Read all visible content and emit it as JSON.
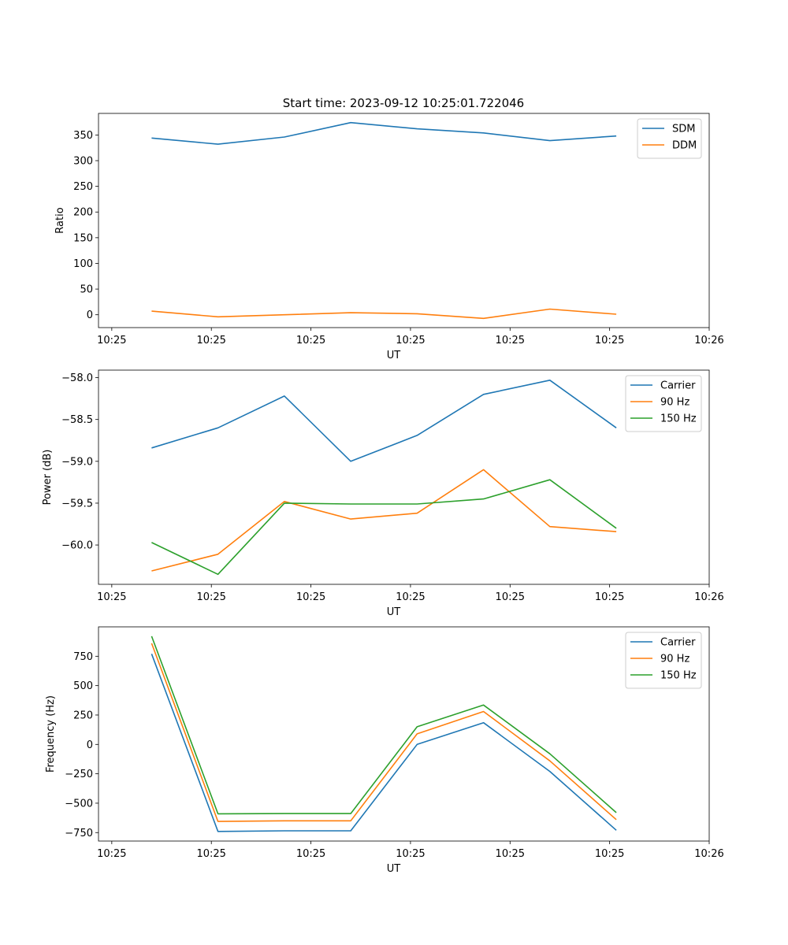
{
  "figure": {
    "title": "Start time: 2023-09-12 10:25:01.722046"
  },
  "colors": {
    "blue": "#1f77b4",
    "orange": "#ff7f0e",
    "green": "#2ca02c"
  },
  "chart_data": [
    {
      "type": "line",
      "title": "Start time: 2023-09-12 10:25:01.722046",
      "xlabel": "UT",
      "ylabel": "Ratio",
      "x": [
        1,
        2,
        3,
        4,
        5,
        6,
        7,
        8
      ],
      "xlim": [
        0.2,
        9.4
      ],
      "xticks": [
        0.4,
        1.9,
        3.4,
        4.9,
        6.4,
        7.9,
        9.4
      ],
      "xtick_labels": [
        "10:25",
        "10:25",
        "10:25",
        "10:25",
        "10:25",
        "10:25",
        "10:26"
      ],
      "ylim": [
        -25,
        392
      ],
      "yticks": [
        0,
        50,
        100,
        150,
        200,
        250,
        300,
        350
      ],
      "ytick_labels": [
        "0",
        "50",
        "100",
        "150",
        "200",
        "250",
        "300",
        "350"
      ],
      "legend": "top-right",
      "series": [
        {
          "name": "SDM",
          "color": "#1f77b4",
          "values": [
            344,
            332,
            346,
            374,
            362,
            354,
            339,
            348
          ]
        },
        {
          "name": "DDM",
          "color": "#ff7f0e",
          "values": [
            7,
            -4,
            0,
            4,
            2,
            -7,
            11,
            1
          ]
        }
      ]
    },
    {
      "type": "line",
      "xlabel": "UT",
      "ylabel": "Power (dB)",
      "x": [
        1,
        2,
        3,
        4,
        5,
        6,
        7,
        8
      ],
      "xlim": [
        0.2,
        9.4
      ],
      "xticks": [
        0.4,
        1.9,
        3.4,
        4.9,
        6.4,
        7.9,
        9.4
      ],
      "xtick_labels": [
        "10:25",
        "10:25",
        "10:25",
        "10:25",
        "10:25",
        "10:25",
        "10:26"
      ],
      "ylim": [
        -60.47,
        -57.91
      ],
      "yticks": [
        -60.0,
        -59.5,
        -59.0,
        -58.5,
        -58.0
      ],
      "ytick_labels": [
        "−60.0",
        "−59.5",
        "−59.0",
        "−58.5",
        "−58.0"
      ],
      "legend": "top-right",
      "series": [
        {
          "name": "Carrier",
          "color": "#1f77b4",
          "values": [
            -58.84,
            -58.6,
            -58.22,
            -59.0,
            -58.69,
            -58.2,
            -58.03,
            -58.6
          ]
        },
        {
          "name": "90 Hz",
          "color": "#ff7f0e",
          "values": [
            -60.31,
            -60.11,
            -59.48,
            -59.69,
            -59.62,
            -59.1,
            -59.78,
            -59.84
          ]
        },
        {
          "name": "150 Hz",
          "color": "#2ca02c",
          "values": [
            -59.97,
            -60.35,
            -59.5,
            -59.51,
            -59.51,
            -59.45,
            -59.22,
            -59.8
          ]
        }
      ]
    },
    {
      "type": "line",
      "xlabel": "UT",
      "ylabel": "Frequency (Hz)",
      "x": [
        1,
        2,
        3,
        4,
        5,
        6,
        7,
        8
      ],
      "xlim": [
        0.2,
        9.4
      ],
      "xticks": [
        0.4,
        1.9,
        3.4,
        4.9,
        6.4,
        7.9,
        9.4
      ],
      "xtick_labels": [
        "10:25",
        "10:25",
        "10:25",
        "10:25",
        "10:25",
        "10:25",
        "10:26"
      ],
      "ylim": [
        -822,
        1000
      ],
      "yticks": [
        -750,
        -500,
        -250,
        0,
        250,
        500,
        750
      ],
      "ytick_labels": [
        "−750",
        "−500",
        "−250",
        "0",
        "250",
        "500",
        "750"
      ],
      "legend": "top-right",
      "series": [
        {
          "name": "Carrier",
          "color": "#1f77b4",
          "values": [
            770,
            -740,
            -735,
            -735,
            0,
            185,
            -230,
            -730
          ]
        },
        {
          "name": "90 Hz",
          "color": "#ff7f0e",
          "values": [
            860,
            -655,
            -650,
            -650,
            90,
            280,
            -140,
            -640
          ]
        },
        {
          "name": "150 Hz",
          "color": "#2ca02c",
          "values": [
            920,
            -590,
            -588,
            -588,
            150,
            335,
            -80,
            -580
          ]
        }
      ]
    }
  ]
}
